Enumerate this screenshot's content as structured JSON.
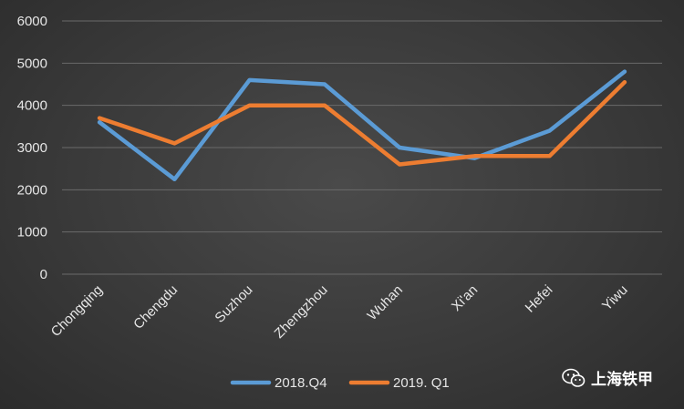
{
  "chart_data": {
    "type": "line",
    "title": "",
    "xlabel": "",
    "ylabel": "",
    "categories": [
      "Chongqing",
      "Chengdu",
      "Suzhou",
      "Zhengzhou",
      "Wuhan",
      "Xi'an",
      "Hefei",
      "Yiwu"
    ],
    "series": [
      {
        "name": "2018.Q4",
        "color": "#5b9bd5",
        "values": [
          3600,
          2250,
          4600,
          4500,
          3000,
          2750,
          3400,
          4800
        ]
      },
      {
        "name": "2019. Q1",
        "color": "#ed7d31",
        "values": [
          3700,
          3100,
          4000,
          4000,
          2600,
          2800,
          2800,
          4550
        ]
      }
    ],
    "ylim": [
      0,
      6000
    ],
    "yticks": [
      0,
      1000,
      2000,
      3000,
      4000,
      5000,
      6000
    ],
    "grid": true,
    "legend_position": "bottom"
  },
  "watermark": {
    "text": "上海铁甲",
    "icon": "wechat-icon"
  }
}
